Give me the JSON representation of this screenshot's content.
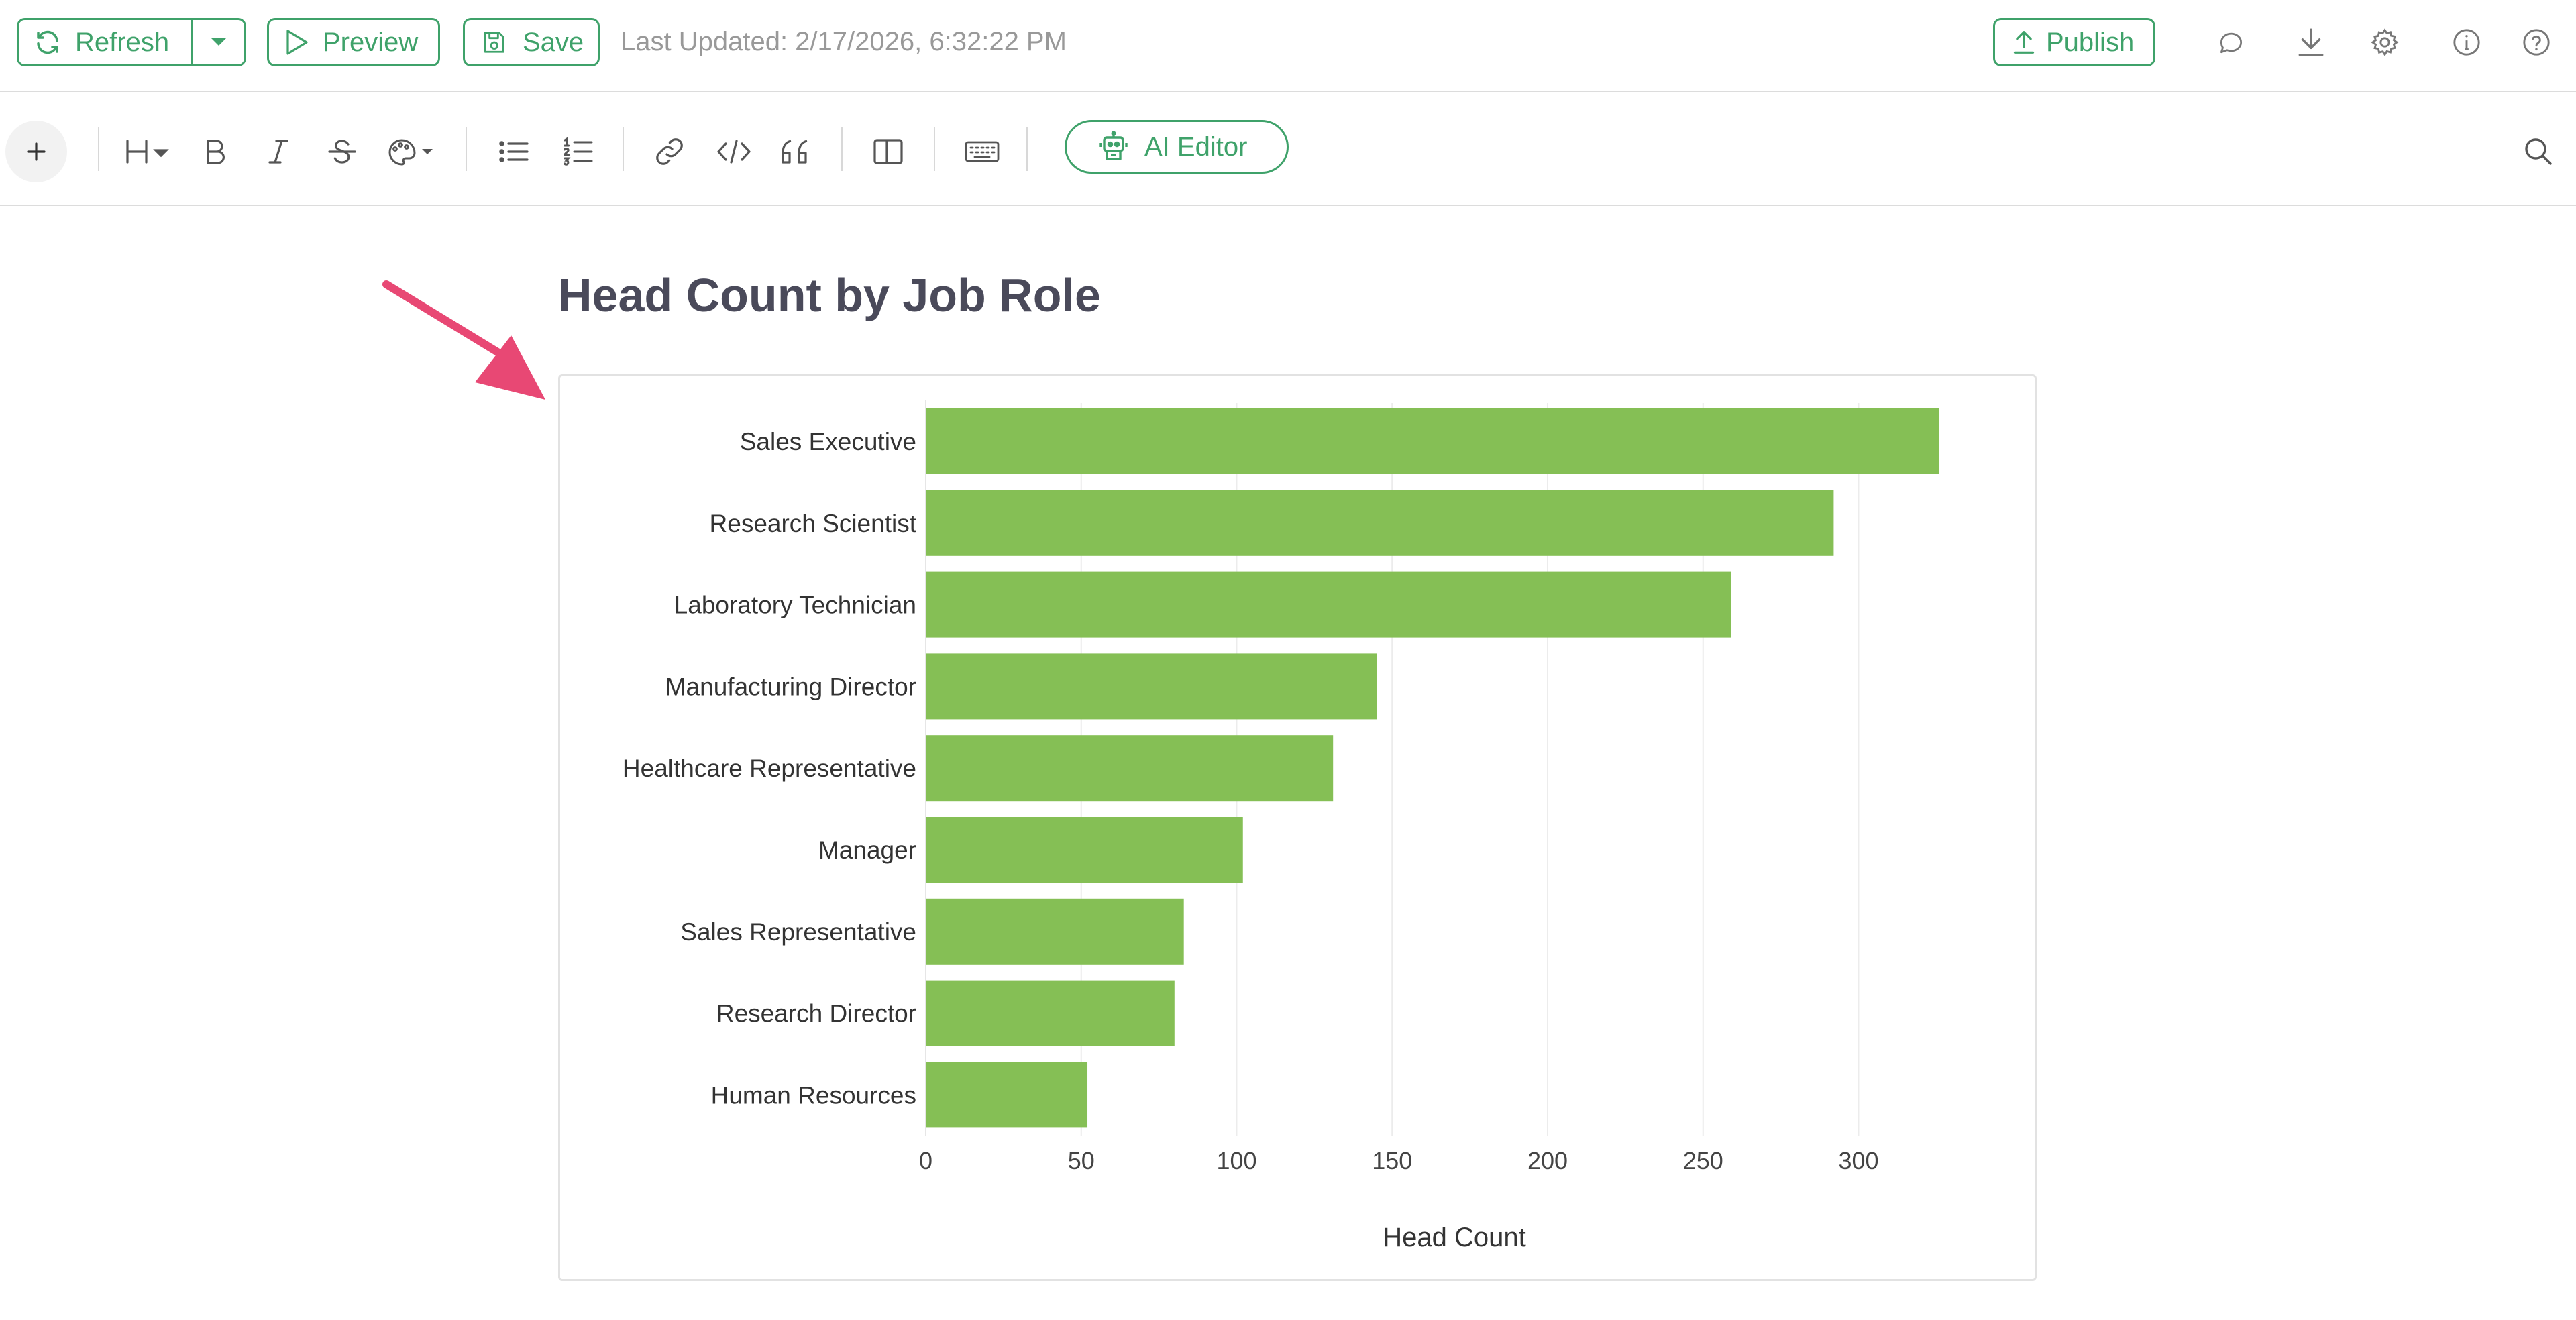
{
  "toolbar_top": {
    "refresh_label": "Refresh",
    "preview_label": "Preview",
    "save_label": "Save",
    "last_updated": "Last Updated: 2/17/2026, 6:32:22 PM",
    "publish_label": "Publish",
    "icons": [
      "refresh-icon",
      "chevron-down-icon",
      "play-icon",
      "save-icon",
      "upload-icon",
      "comment-icon",
      "download-icon",
      "gear-icon",
      "info-icon",
      "help-icon"
    ]
  },
  "editor_toolbar": {
    "ai_editor_label": "AI Editor",
    "icons": [
      "plus-icon",
      "heading-icon",
      "bold-icon",
      "italic-icon",
      "strikethrough-icon",
      "palette-icon",
      "bullet-list-icon",
      "numbered-list-icon",
      "link-icon",
      "code-icon",
      "quote-icon",
      "columns-icon",
      "keyboard-icon",
      "robot-icon",
      "search-icon"
    ]
  },
  "content": {
    "block_title": "Head Count by Job Role"
  },
  "colors": {
    "accent": "#3fa26a",
    "bar": "#85bf55",
    "annotation_arrow": "#e84874"
  },
  "chart_data": {
    "type": "bar",
    "orientation": "horizontal",
    "categories": [
      "Sales Executive",
      "Research Scientist",
      "Laboratory Technician",
      "Manufacturing Director",
      "Healthcare Representative",
      "Manager",
      "Sales Representative",
      "Research Director",
      "Human Resources"
    ],
    "values": [
      326,
      292,
      259,
      145,
      131,
      102,
      83,
      80,
      52
    ],
    "xlabel": "Head Count",
    "ylabel": "",
    "xlim": [
      0,
      340
    ],
    "xticks": [
      0,
      50,
      100,
      150,
      200,
      250,
      300
    ],
    "grid": true
  }
}
